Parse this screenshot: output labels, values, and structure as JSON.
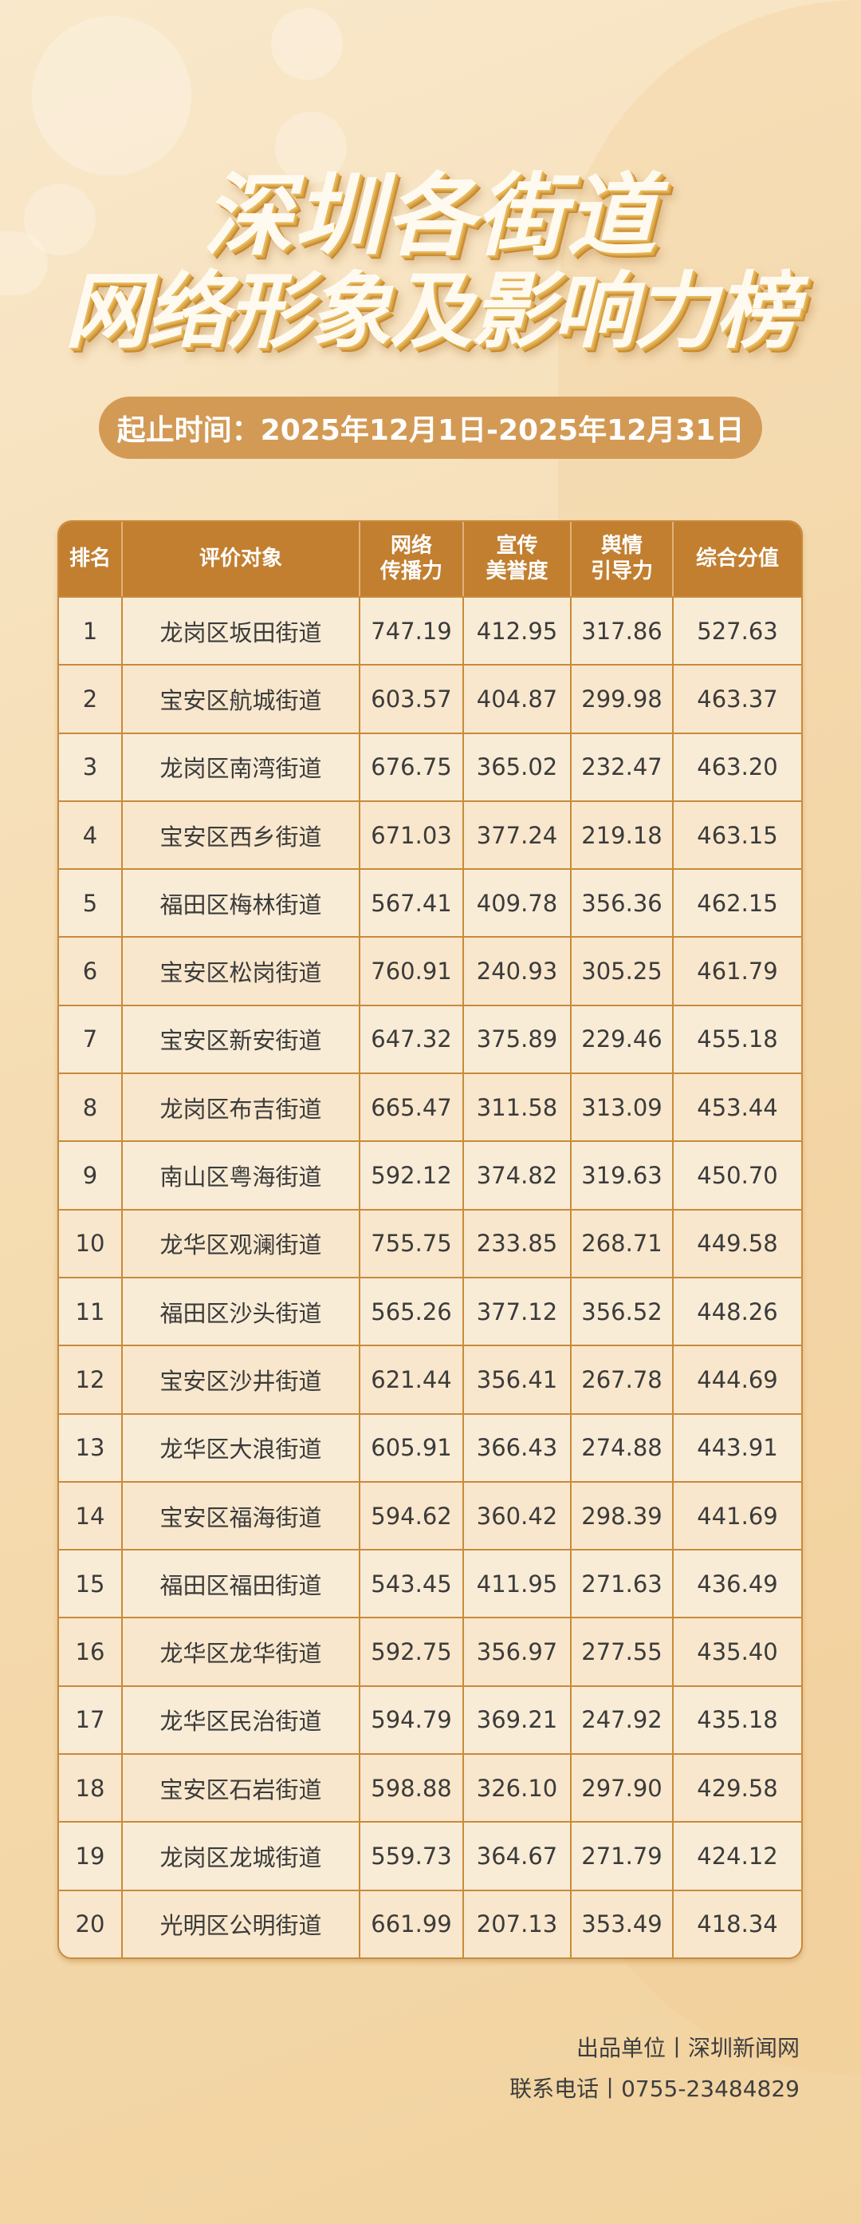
{
  "title": {
    "line1": "深圳各街道",
    "line2": "网络形象及影响力榜"
  },
  "period": "起止时间：2025年12月1日-2025年12月31日",
  "table": {
    "headers": [
      "排名",
      "评价对象",
      "网络\n传播力",
      "宣传\n美誉度",
      "舆情\n引导力",
      "综合分值"
    ],
    "rows": [
      [
        "1",
        "龙岗区坂田街道",
        "747.19",
        "412.95",
        "317.86",
        "527.63"
      ],
      [
        "2",
        "宝安区航城街道",
        "603.57",
        "404.87",
        "299.98",
        "463.37"
      ],
      [
        "3",
        "龙岗区南湾街道",
        "676.75",
        "365.02",
        "232.47",
        "463.20"
      ],
      [
        "4",
        "宝安区西乡街道",
        "671.03",
        "377.24",
        "219.18",
        "463.15"
      ],
      [
        "5",
        "福田区梅林街道",
        "567.41",
        "409.78",
        "356.36",
        "462.15"
      ],
      [
        "6",
        "宝安区松岗街道",
        "760.91",
        "240.93",
        "305.25",
        "461.79"
      ],
      [
        "7",
        "宝安区新安街道",
        "647.32",
        "375.89",
        "229.46",
        "455.18"
      ],
      [
        "8",
        "龙岗区布吉街道",
        "665.47",
        "311.58",
        "313.09",
        "453.44"
      ],
      [
        "9",
        "南山区粤海街道",
        "592.12",
        "374.82",
        "319.63",
        "450.70"
      ],
      [
        "10",
        "龙华区观澜街道",
        "755.75",
        "233.85",
        "268.71",
        "449.58"
      ],
      [
        "11",
        "福田区沙头街道",
        "565.26",
        "377.12",
        "356.52",
        "448.26"
      ],
      [
        "12",
        "宝安区沙井街道",
        "621.44",
        "356.41",
        "267.78",
        "444.69"
      ],
      [
        "13",
        "龙华区大浪街道",
        "605.91",
        "366.43",
        "274.88",
        "443.91"
      ],
      [
        "14",
        "宝安区福海街道",
        "594.62",
        "360.42",
        "298.39",
        "441.69"
      ],
      [
        "15",
        "福田区福田街道",
        "543.45",
        "411.95",
        "271.63",
        "436.49"
      ],
      [
        "16",
        "龙华区龙华街道",
        "592.75",
        "356.97",
        "277.55",
        "435.40"
      ],
      [
        "17",
        "龙华区民治街道",
        "594.79",
        "369.21",
        "247.92",
        "435.18"
      ],
      [
        "18",
        "宝安区石岩街道",
        "598.88",
        "326.10",
        "297.90",
        "429.58"
      ],
      [
        "19",
        "龙岗区龙城街道",
        "559.73",
        "364.67",
        "271.79",
        "424.12"
      ],
      [
        "20",
        "光明区公明街道",
        "661.99",
        "207.13",
        "353.49",
        "418.34"
      ]
    ]
  },
  "footer": {
    "producer": "出品单位丨深圳新闻网",
    "phone": "联系电话丨0755-23484829"
  },
  "colors": {
    "header": "#c27f30",
    "border": "#c98a3a",
    "pill": "#d39a55",
    "row_bg": "#f9ead2"
  }
}
